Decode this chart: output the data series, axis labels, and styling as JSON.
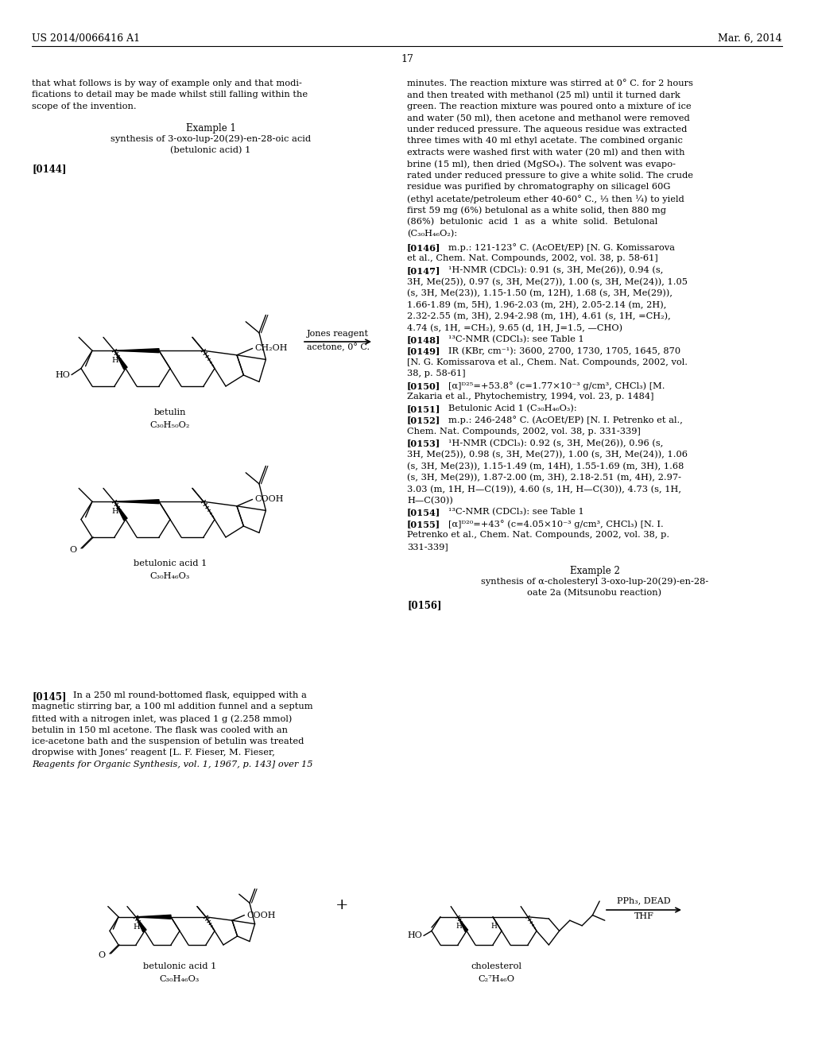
{
  "page_header_left": "US 2014/0066416 A1",
  "page_header_right": "Mar. 6, 2014",
  "page_number": "17",
  "background_color": "#ffffff"
}
